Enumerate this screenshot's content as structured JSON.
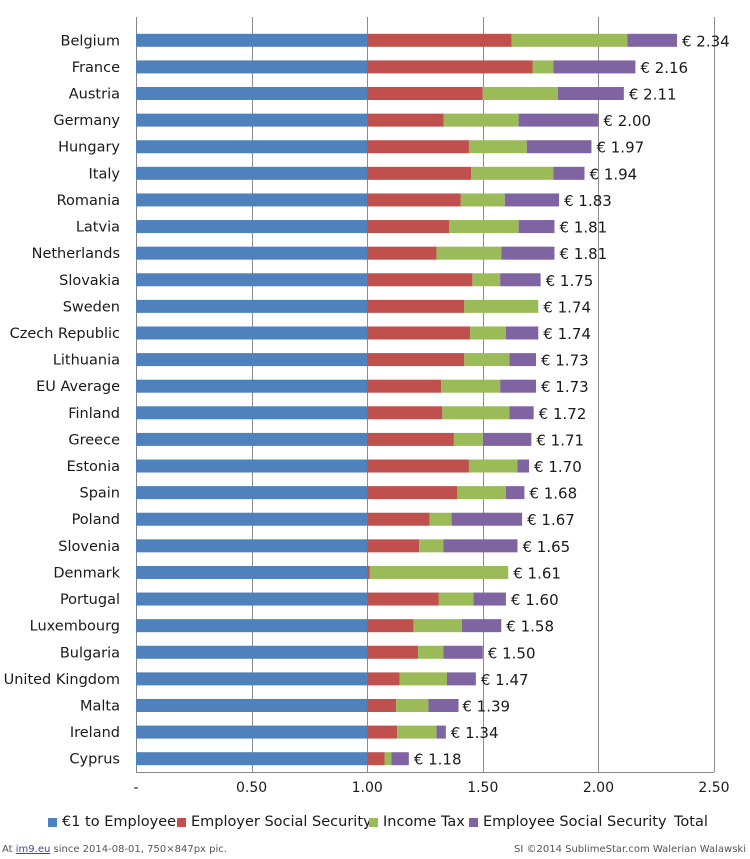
{
  "chart_data": {
    "type": "bar",
    "orientation": "horizontal",
    "stacked": true,
    "categories": [
      "Belgium",
      "France",
      "Austria",
      "Germany",
      "Hungary",
      "Italy",
      "Romania",
      "Latvia",
      "Netherlands",
      "Slovakia",
      "Sweden",
      "Czech Republic",
      "Lithuania",
      "EU Average",
      "Finland",
      "Greece",
      "Estonia",
      "Spain",
      "Poland",
      "Slovenia",
      "Denmark",
      "Portugal",
      "Luxembourg",
      "Bulgaria",
      "United Kingdom",
      "Malta",
      "Ireland",
      "Cyprus"
    ],
    "series": [
      {
        "name": "€1 to Employee",
        "color": "#4f81bd",
        "values": [
          1,
          1,
          1,
          1,
          1,
          1,
          1,
          1,
          1,
          1,
          1,
          1,
          1,
          1,
          1,
          1,
          1,
          1,
          1,
          1,
          1,
          1,
          1,
          1,
          1,
          1,
          1,
          1
        ]
      },
      {
        "name": "Employer Social Security",
        "color": "#c0504d",
        "values": [
          0.625,
          0.715,
          0.5,
          0.33,
          0.44,
          0.45,
          0.405,
          0.355,
          0.3,
          0.455,
          0.42,
          0.445,
          0.42,
          0.32,
          0.325,
          0.375,
          0.44,
          0.39,
          0.27,
          0.225,
          0.01,
          0.31,
          0.2,
          0.22,
          0.14,
          0.125,
          0.13,
          0.075
        ]
      },
      {
        "name": "Income Tax",
        "color": "#9bbb59",
        "values": [
          0.5,
          0.09,
          0.325,
          0.325,
          0.25,
          0.355,
          0.19,
          0.3,
          0.28,
          0.12,
          0.32,
          0.155,
          0.195,
          0.255,
          0.29,
          0.125,
          0.21,
          0.21,
          0.095,
          0.105,
          0.6,
          0.15,
          0.21,
          0.11,
          0.205,
          0.14,
          0.17,
          0.03
        ]
      },
      {
        "name": "Employee Social Security",
        "color": "#8064a2",
        "values": [
          0.215,
          0.355,
          0.285,
          0.345,
          0.28,
          0.135,
          0.235,
          0.155,
          0.23,
          0.175,
          0,
          0.14,
          0.115,
          0.155,
          0.105,
          0.21,
          0.05,
          0.08,
          0.305,
          0.32,
          0,
          0.14,
          0.17,
          0.17,
          0.125,
          0.13,
          0.04,
          0.075
        ]
      },
      {
        "name": "Total",
        "color": "",
        "values": [
          2.34,
          2.16,
          2.11,
          2.0,
          1.97,
          1.94,
          1.83,
          1.81,
          1.81,
          1.75,
          1.74,
          1.74,
          1.73,
          1.73,
          1.72,
          1.71,
          1.7,
          1.68,
          1.67,
          1.65,
          1.61,
          1.6,
          1.58,
          1.5,
          1.47,
          1.39,
          1.34,
          1.18
        ]
      }
    ],
    "total_labels": [
      "€ 2.34",
      "€ 2.16",
      "€ 2.11",
      "€ 2.00",
      "€ 1.97",
      "€ 1.94",
      "€ 1.83",
      "€ 1.81",
      "€ 1.81",
      "€ 1.75",
      "€ 1.74",
      "€ 1.74",
      "€ 1.73",
      "€ 1.73",
      "€ 1.72",
      "€ 1.71",
      "€ 1.70",
      "€ 1.68",
      "€ 1.67",
      "€ 1.65",
      "€ 1.61",
      "€ 1.60",
      "€ 1.58",
      "€ 1.50",
      "€ 1.47",
      "€ 1.39",
      "€ 1.34",
      "€ 1.18"
    ],
    "x_ticks": [
      "-",
      "0.50",
      "1.00",
      "1.50",
      "2.00",
      "2.50"
    ],
    "x_tick_values": [
      0,
      0.5,
      1.0,
      1.5,
      2.0,
      2.5
    ],
    "xlim": [
      0,
      2.5
    ],
    "grid": "vertical",
    "legend_position": "bottom",
    "title": "",
    "xlabel": "",
    "ylabel": ""
  },
  "legend": {
    "items": [
      "€1 to Employee",
      "Employer Social Security",
      "Income Tax",
      "Employee Social Security",
      "Total"
    ]
  },
  "footer": {
    "left_prefix": "At ",
    "left_link": "im9.eu",
    "left_suffix": " since 2014-08-01, 750×847px pic.",
    "right": "SI ©2014 SublimeStar.com Walerian Walawski"
  }
}
